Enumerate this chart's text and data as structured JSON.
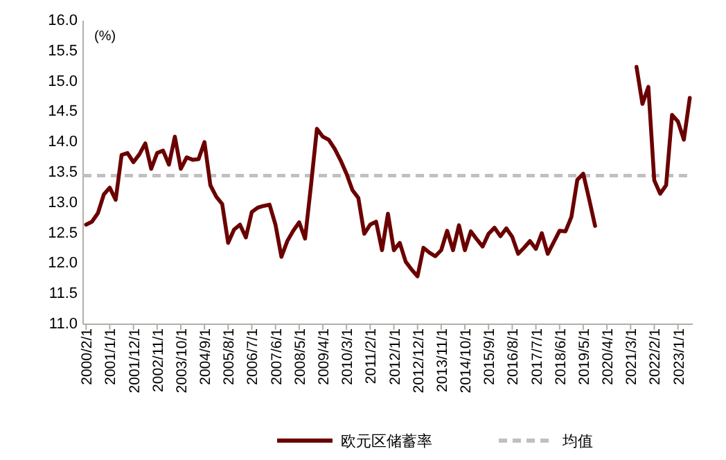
{
  "chart_data": {
    "type": "line",
    "categories": [
      "2000/2/1",
      null,
      null,
      null,
      "2001/1/1",
      null,
      null,
      null,
      "2001/12/1",
      null,
      null,
      null,
      "2002/11/1",
      null,
      null,
      null,
      "2003/10/1",
      null,
      null,
      null,
      "2004/9/1",
      null,
      null,
      null,
      "2005/8/1",
      null,
      null,
      null,
      "2006/7/1",
      null,
      null,
      null,
      "2007/6/1",
      null,
      null,
      null,
      "2008/5/1",
      null,
      null,
      null,
      "2009/4/1",
      null,
      null,
      null,
      "2010/3/1",
      null,
      null,
      null,
      "2011/2/1",
      null,
      null,
      null,
      "2012/1/1",
      null,
      null,
      null,
      "2012/12/1",
      null,
      null,
      null,
      "2013/11/1",
      null,
      null,
      null,
      "2014/10/1",
      null,
      null,
      null,
      "2015/9/1",
      null,
      null,
      null,
      "2016/8/1",
      null,
      null,
      null,
      "2017/7/1",
      null,
      null,
      null,
      "2018/6/1",
      null,
      null,
      null,
      "2019/5/1",
      null,
      null,
      null,
      "2020/4/1",
      null,
      null,
      null,
      "2021/3/1",
      null,
      null,
      null,
      "2022/2/1",
      null,
      null,
      null,
      "2023/1/1",
      null,
      null
    ],
    "series": [
      {
        "name": "欧元区储蓄率",
        "color": "#6b0000",
        "values": [
          12.64,
          12.69,
          12.83,
          13.14,
          13.25,
          13.05,
          13.79,
          13.82,
          13.67,
          13.8,
          13.98,
          13.56,
          13.82,
          13.86,
          13.63,
          14.09,
          13.56,
          13.75,
          13.71,
          13.72,
          14.0,
          13.29,
          13.1,
          12.98,
          12.34,
          12.56,
          12.64,
          12.43,
          12.85,
          12.92,
          12.95,
          12.97,
          12.64,
          12.11,
          12.37,
          12.54,
          12.68,
          12.41,
          13.29,
          14.22,
          14.09,
          14.04,
          13.89,
          13.7,
          13.48,
          13.21,
          13.08,
          12.49,
          12.64,
          12.69,
          12.22,
          12.82,
          12.22,
          12.34,
          12.03,
          11.9,
          11.79,
          12.26,
          12.18,
          12.12,
          12.22,
          12.54,
          12.22,
          12.63,
          12.22,
          12.53,
          12.4,
          12.28,
          12.49,
          12.59,
          12.45,
          12.58,
          12.44,
          12.16,
          12.26,
          12.37,
          12.24,
          12.5,
          12.16,
          12.35,
          12.54,
          12.53,
          12.77,
          13.38,
          13.48,
          13.06,
          12.62,
          null,
          null,
          null,
          null,
          null,
          null,
          15.24,
          14.63,
          14.91,
          13.37,
          13.15,
          13.29,
          14.45,
          14.34,
          14.04,
          14.73
        ]
      }
    ],
    "ref_lines": [
      {
        "axis": "y",
        "value": 13.45,
        "label": "均值",
        "color": "#c0c0c0",
        "line_style": "dashed"
      }
    ],
    "ylim": [
      11,
      16
    ],
    "yticks": [
      {
        "value": 11,
        "label": "11.0"
      },
      {
        "value": 11.5,
        "label": "11.5"
      },
      {
        "value": 12,
        "label": "12.0"
      },
      {
        "value": 12.5,
        "label": "12.5"
      },
      {
        "value": 13,
        "label": "13.0"
      },
      {
        "value": 13.5,
        "label": "13.5"
      },
      {
        "value": 14,
        "label": "14.0"
      },
      {
        "value": 14.5,
        "label": "14.5"
      },
      {
        "value": 15,
        "label": "15.0"
      },
      {
        "value": 15.5,
        "label": "15.5"
      },
      {
        "value": 16,
        "label": "16.0"
      }
    ],
    "annotations": [
      "(%)"
    ],
    "legend": "bottom",
    "grid": false,
    "marker": "none",
    "line_style": "solid"
  }
}
